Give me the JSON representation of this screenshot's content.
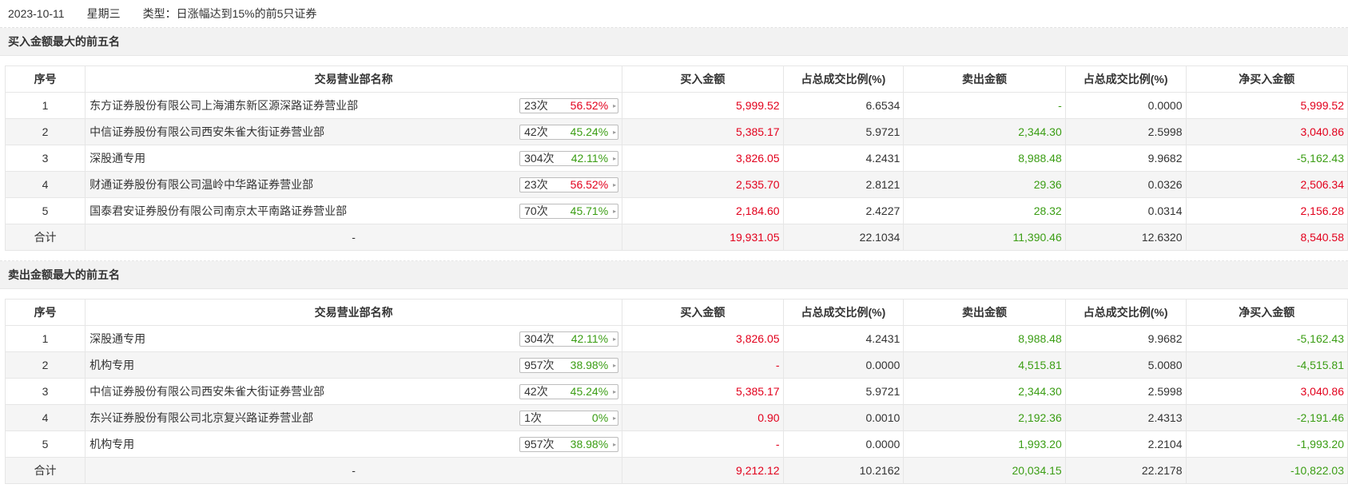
{
  "info": {
    "date": "2023-10-11",
    "weekday": "星期三",
    "type_label": "类型：日涨幅达到15%的前5只证券"
  },
  "columns": [
    "序号",
    "交易营业部名称",
    "买入金额",
    "占总成交比例(%)",
    "卖出金额",
    "占总成交比例(%)",
    "净买入金额"
  ],
  "colors": {
    "up": "#e2001c",
    "down": "#3a9d13"
  },
  "buy_section": {
    "title": "买入金额最大的前五名",
    "rows": [
      {
        "idx": "1",
        "name": "东方证券股份有限公司上海浦东新区源深路证券营业部",
        "count": "23次",
        "pct": "56.52%",
        "pct_color": "red",
        "buy": "5,999.52",
        "buy_ratio": "6.6534",
        "sell": "-",
        "sell_ratio": "0.0000",
        "net": "5,999.52",
        "net_color": "red"
      },
      {
        "idx": "2",
        "name": "中信证券股份有限公司西安朱雀大街证券营业部",
        "count": "42次",
        "pct": "45.24%",
        "pct_color": "green",
        "buy": "5,385.17",
        "buy_ratio": "5.9721",
        "sell": "2,344.30",
        "sell_ratio": "2.5998",
        "net": "3,040.86",
        "net_color": "red"
      },
      {
        "idx": "3",
        "name": "深股通专用",
        "count": "304次",
        "pct": "42.11%",
        "pct_color": "green",
        "buy": "3,826.05",
        "buy_ratio": "4.2431",
        "sell": "8,988.48",
        "sell_ratio": "9.9682",
        "net": "-5,162.43",
        "net_color": "green"
      },
      {
        "idx": "4",
        "name": "财通证券股份有限公司温岭中华路证券营业部",
        "count": "23次",
        "pct": "56.52%",
        "pct_color": "red",
        "buy": "2,535.70",
        "buy_ratio": "2.8121",
        "sell": "29.36",
        "sell_ratio": "0.0326",
        "net": "2,506.34",
        "net_color": "red"
      },
      {
        "idx": "5",
        "name": "国泰君安证券股份有限公司南京太平南路证券营业部",
        "count": "70次",
        "pct": "45.71%",
        "pct_color": "green",
        "buy": "2,184.60",
        "buy_ratio": "2.4227",
        "sell": "28.32",
        "sell_ratio": "0.0314",
        "net": "2,156.28",
        "net_color": "red"
      }
    ],
    "total": {
      "label": "合计",
      "name": "-",
      "buy": "19,931.05",
      "buy_ratio": "22.1034",
      "sell": "11,390.46",
      "sell_ratio": "12.6320",
      "net": "8,540.58",
      "net_color": "red"
    }
  },
  "sell_section": {
    "title": "卖出金额最大的前五名",
    "rows": [
      {
        "idx": "1",
        "name": "深股通专用",
        "count": "304次",
        "pct": "42.11%",
        "pct_color": "green",
        "buy": "3,826.05",
        "buy_ratio": "4.2431",
        "sell": "8,988.48",
        "sell_ratio": "9.9682",
        "net": "-5,162.43",
        "net_color": "green"
      },
      {
        "idx": "2",
        "name": "机构专用",
        "count": "957次",
        "pct": "38.98%",
        "pct_color": "green",
        "buy": "-",
        "buy_ratio": "0.0000",
        "sell": "4,515.81",
        "sell_ratio": "5.0080",
        "net": "-4,515.81",
        "net_color": "green"
      },
      {
        "idx": "3",
        "name": "中信证券股份有限公司西安朱雀大街证券营业部",
        "count": "42次",
        "pct": "45.24%",
        "pct_color": "green",
        "buy": "5,385.17",
        "buy_ratio": "5.9721",
        "sell": "2,344.30",
        "sell_ratio": "2.5998",
        "net": "3,040.86",
        "net_color": "red"
      },
      {
        "idx": "4",
        "name": "东兴证券股份有限公司北京复兴路证券营业部",
        "count": "1次",
        "pct": "0%",
        "pct_color": "green",
        "buy": "0.90",
        "buy_ratio": "0.0010",
        "sell": "2,192.36",
        "sell_ratio": "2.4313",
        "net": "-2,191.46",
        "net_color": "green"
      },
      {
        "idx": "5",
        "name": "机构专用",
        "count": "957次",
        "pct": "38.98%",
        "pct_color": "green",
        "buy": "-",
        "buy_ratio": "0.0000",
        "sell": "1,993.20",
        "sell_ratio": "2.2104",
        "net": "-1,993.20",
        "net_color": "green"
      }
    ],
    "total": {
      "label": "合计",
      "name": "-",
      "buy": "9,212.12",
      "buy_ratio": "10.2162",
      "sell": "20,034.15",
      "sell_ratio": "22.2178",
      "net": "-10,822.03",
      "net_color": "green"
    }
  }
}
